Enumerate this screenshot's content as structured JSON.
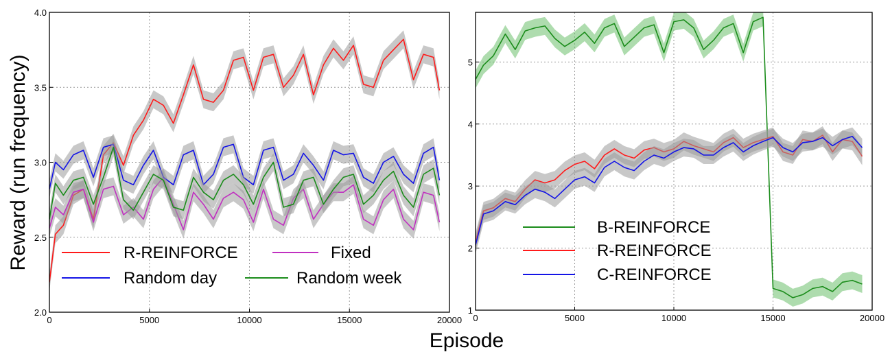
{
  "figure": {
    "xlabel": "Episode"
  },
  "chart_data": [
    {
      "type": "line",
      "ylabel": "Reward (run frequency)",
      "xlabel": "Episode",
      "xlim": [
        0,
        20000
      ],
      "ylim": [
        2.0,
        4.0
      ],
      "xticks": [
        "0",
        "5000",
        "10000",
        "15000",
        "20000"
      ],
      "yticks": [
        "2.0",
        "2.5",
        "3.0",
        "3.5",
        "4.0"
      ],
      "grid": true,
      "legend_placement": "bottom",
      "series": [
        {
          "name": "R-REINFORCE",
          "color": "#ff1a1a",
          "band": "#9a9a9a",
          "x": [
            0,
            300,
            700,
            1200,
            1700,
            2200,
            2700,
            3200,
            3700,
            4200,
            4700,
            5200,
            5700,
            6200,
            6700,
            7200,
            7700,
            8200,
            8700,
            9200,
            9700,
            10200,
            10700,
            11200,
            11700,
            12200,
            12700,
            13200,
            13700,
            14200,
            14700,
            15200,
            15700,
            16200,
            16700,
            17200,
            17700,
            18200,
            18700,
            19200,
            19500
          ],
          "y": [
            2.2,
            2.52,
            2.58,
            2.78,
            2.82,
            2.62,
            3.05,
            3.13,
            2.98,
            3.18,
            3.28,
            3.42,
            3.38,
            3.26,
            3.45,
            3.65,
            3.42,
            3.4,
            3.48,
            3.68,
            3.7,
            3.48,
            3.7,
            3.72,
            3.5,
            3.58,
            3.72,
            3.45,
            3.65,
            3.76,
            3.68,
            3.78,
            3.52,
            3.5,
            3.68,
            3.75,
            3.82,
            3.55,
            3.72,
            3.7,
            3.48
          ]
        },
        {
          "name": "Fixed",
          "color": "#c030c0",
          "band": "#9a9a9a",
          "x": [
            0,
            300,
            700,
            1200,
            1700,
            2200,
            2700,
            3200,
            3700,
            4200,
            4700,
            5200,
            5700,
            6200,
            6700,
            7200,
            7700,
            8200,
            8700,
            9200,
            9700,
            10200,
            10700,
            11200,
            11700,
            12200,
            12700,
            13200,
            13700,
            14200,
            14700,
            15200,
            15700,
            16200,
            16700,
            17200,
            17700,
            18200,
            18700,
            19200,
            19500
          ],
          "y": [
            2.56,
            2.7,
            2.65,
            2.8,
            2.82,
            2.6,
            2.82,
            2.84,
            2.65,
            2.7,
            2.62,
            2.82,
            2.9,
            2.72,
            2.55,
            2.8,
            2.72,
            2.62,
            2.76,
            2.8,
            2.75,
            2.6,
            2.82,
            2.62,
            2.58,
            2.76,
            2.82,
            2.62,
            2.72,
            2.8,
            2.8,
            2.85,
            2.62,
            2.58,
            2.75,
            2.82,
            2.62,
            2.55,
            2.8,
            2.78,
            2.6
          ]
        },
        {
          "name": "Random day",
          "color": "#1414e6",
          "band": "#9a9a9a",
          "x": [
            0,
            300,
            700,
            1200,
            1700,
            2200,
            2700,
            3200,
            3700,
            4200,
            4700,
            5200,
            5700,
            6200,
            6700,
            7200,
            7700,
            8200,
            8700,
            9200,
            9700,
            10200,
            10700,
            11200,
            11700,
            12200,
            12700,
            13200,
            13700,
            14200,
            14700,
            15200,
            15700,
            16200,
            16700,
            17200,
            17700,
            18200,
            18700,
            19200,
            19500
          ],
          "y": [
            2.82,
            3.0,
            2.95,
            3.05,
            3.08,
            2.9,
            3.1,
            3.12,
            2.88,
            2.85,
            2.98,
            3.08,
            2.9,
            2.85,
            3.05,
            3.08,
            2.85,
            2.92,
            3.1,
            3.12,
            2.9,
            2.85,
            3.08,
            3.1,
            2.88,
            2.92,
            3.06,
            2.98,
            2.88,
            3.08,
            3.05,
            3.06,
            2.9,
            2.86,
            3.0,
            3.04,
            2.92,
            2.86,
            3.06,
            3.1,
            2.88
          ]
        },
        {
          "name": "Random week",
          "color": "#1a8c1a",
          "band": "#9a9a9a",
          "x": [
            0,
            300,
            700,
            1200,
            1700,
            2200,
            2700,
            3200,
            3700,
            4200,
            4700,
            5200,
            5700,
            6200,
            6700,
            7200,
            7700,
            8200,
            8700,
            9200,
            9700,
            10200,
            10700,
            11200,
            11700,
            12200,
            12700,
            13200,
            13700,
            14200,
            14700,
            15200,
            15700,
            16200,
            16700,
            17200,
            17700,
            18200,
            18700,
            19200,
            19500
          ],
          "y": [
            2.62,
            2.86,
            2.78,
            2.88,
            2.9,
            2.72,
            2.9,
            3.1,
            2.75,
            2.68,
            2.8,
            2.92,
            2.88,
            2.7,
            2.68,
            2.9,
            2.8,
            2.75,
            2.88,
            2.92,
            2.85,
            2.72,
            2.9,
            3.0,
            2.7,
            2.72,
            2.88,
            2.9,
            2.72,
            2.82,
            2.9,
            2.92,
            2.72,
            2.78,
            2.88,
            2.94,
            2.78,
            2.7,
            2.92,
            2.96,
            2.78
          ]
        }
      ],
      "legend": [
        {
          "label": "R-REINFORCE",
          "color": "#ff1a1a"
        },
        {
          "label": "Fixed",
          "color": "#c030c0"
        },
        {
          "label": "Random day",
          "color": "#1414e6"
        },
        {
          "label": "Random week",
          "color": "#1a8c1a"
        }
      ]
    },
    {
      "type": "line",
      "xlabel": "Episode",
      "xlim": [
        0,
        20000
      ],
      "ylim": [
        1,
        5.8
      ],
      "xticks": [
        "0",
        "5000",
        "10000",
        "15000",
        "20000"
      ],
      "yticks": [
        "1",
        "2",
        "3",
        "4",
        "5"
      ],
      "grid": true,
      "legend_placement": "center-left",
      "series": [
        {
          "name": "B-REINFORCE",
          "color": "#1a8c1a",
          "band": "#6cbf6c",
          "x": [
            0,
            400,
            900,
            1500,
            2000,
            2500,
            3000,
            3500,
            4000,
            4500,
            5000,
            5500,
            6000,
            6500,
            7000,
            7500,
            8000,
            8500,
            9000,
            9500,
            10000,
            10500,
            11000,
            11500,
            12000,
            12500,
            13000,
            13500,
            14000,
            14500,
            15000,
            15500,
            16000,
            16500,
            17000,
            17500,
            18000,
            18500,
            19000,
            19500
          ],
          "y": [
            4.72,
            4.95,
            5.1,
            5.45,
            5.2,
            5.5,
            5.55,
            5.58,
            5.38,
            5.25,
            5.35,
            5.48,
            5.3,
            5.55,
            5.62,
            5.25,
            5.4,
            5.55,
            5.6,
            5.15,
            5.65,
            5.68,
            5.55,
            5.2,
            5.35,
            5.55,
            5.62,
            5.15,
            5.65,
            5.72,
            1.35,
            1.3,
            1.2,
            1.25,
            1.35,
            1.38,
            1.3,
            1.45,
            1.48,
            1.42
          ]
        },
        {
          "name": "R-REINFORCE",
          "color": "#ff1a1a",
          "band": "#9a9a9a",
          "x": [
            0,
            400,
            900,
            1500,
            2000,
            2500,
            3000,
            3500,
            4000,
            4500,
            5000,
            5500,
            6000,
            6500,
            7000,
            7500,
            8000,
            8500,
            9000,
            9500,
            10000,
            10500,
            11000,
            11500,
            12000,
            12500,
            13000,
            13500,
            14000,
            14500,
            15000,
            15500,
            16000,
            16500,
            17000,
            17500,
            18000,
            18500,
            19000,
            19500
          ],
          "y": [
            2.1,
            2.6,
            2.65,
            2.8,
            2.75,
            2.95,
            3.1,
            3.05,
            3.1,
            3.25,
            3.35,
            3.4,
            3.28,
            3.5,
            3.6,
            3.5,
            3.45,
            3.58,
            3.62,
            3.55,
            3.6,
            3.72,
            3.65,
            3.6,
            3.55,
            3.7,
            3.78,
            3.62,
            3.7,
            3.75,
            3.8,
            3.55,
            3.5,
            3.75,
            3.72,
            3.82,
            3.55,
            3.75,
            3.72,
            3.48
          ]
        },
        {
          "name": "C-REINFORCE",
          "color": "#1414e6",
          "band": "#9a9a9a",
          "x": [
            0,
            400,
            900,
            1500,
            2000,
            2500,
            3000,
            3500,
            4000,
            4500,
            5000,
            5500,
            6000,
            6500,
            7000,
            7500,
            8000,
            8500,
            9000,
            9500,
            10000,
            10500,
            11000,
            11500,
            12000,
            12500,
            13000,
            13500,
            14000,
            14500,
            15000,
            15500,
            16000,
            16500,
            17000,
            17500,
            18000,
            18500,
            19000,
            19500
          ],
          "y": [
            2.05,
            2.55,
            2.6,
            2.75,
            2.7,
            2.85,
            2.95,
            2.9,
            2.8,
            2.95,
            3.1,
            3.15,
            3.05,
            3.3,
            3.4,
            3.3,
            3.25,
            3.4,
            3.5,
            3.45,
            3.55,
            3.62,
            3.6,
            3.5,
            3.5,
            3.62,
            3.7,
            3.55,
            3.65,
            3.72,
            3.78,
            3.62,
            3.55,
            3.7,
            3.72,
            3.78,
            3.65,
            3.75,
            3.8,
            3.62
          ]
        }
      ],
      "legend": [
        {
          "label": "B-REINFORCE",
          "color": "#1a8c1a"
        },
        {
          "label": "R-REINFORCE",
          "color": "#ff1a1a"
        },
        {
          "label": "C-REINFORCE",
          "color": "#1414e6"
        }
      ]
    }
  ]
}
